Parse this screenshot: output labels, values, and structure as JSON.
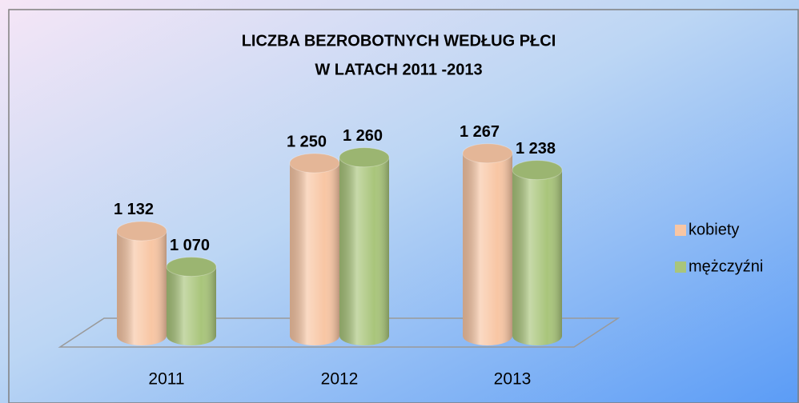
{
  "chart_data": {
    "type": "bar3d",
    "title": [
      "LICZBA BEZROBOTNYCH WEDŁUG PŁCI",
      "W LATACH 2011 -2013"
    ],
    "categories": [
      "2011",
      "2012",
      "2013"
    ],
    "series": [
      {
        "name": "kobiety",
        "color": "#f8c6a4",
        "values": [
          1132,
          1250,
          1267
        ],
        "value_labels": [
          "1 132",
          "1 250",
          "1 267"
        ]
      },
      {
        "name": "mężczyźni",
        "color": "#a9c57b",
        "values": [
          1070,
          1260,
          1238
        ],
        "value_labels": [
          "1 070",
          "1 260",
          "1 238"
        ]
      }
    ],
    "ylim": [
      950,
      1300
    ],
    "legend": "right"
  }
}
